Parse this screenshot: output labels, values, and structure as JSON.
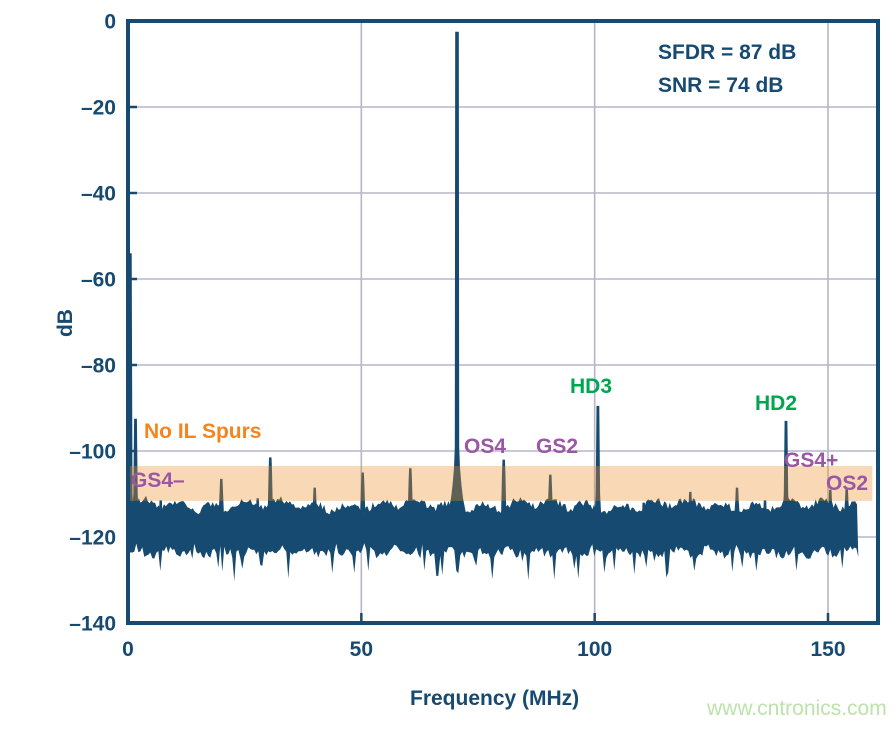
{
  "colors": {
    "navy": "#174A70",
    "grid": "#B6B6C8",
    "band_fill": "#EB8D26",
    "band_opacity": 0.34,
    "orange_text": "#F5841F",
    "purple_text": "#9A57A5",
    "green_text": "#00A550",
    "watermark_green": "#BCE3AB",
    "background": "#FFFFFF"
  },
  "chart_data": {
    "type": "line",
    "title": "",
    "xlabel": "Frequency (MHz)",
    "ylabel": "dB",
    "x_ticks": [
      0,
      50,
      100,
      150
    ],
    "y_ticks": [
      0,
      -20,
      -40,
      -60,
      -80,
      -100,
      -120,
      -140
    ],
    "xlim": [
      0,
      160.7
    ],
    "ylim": [
      -140,
      0
    ],
    "grid": true,
    "sfdr_db": 87,
    "snr_db": 74,
    "stats_box": {
      "line1": "SFDR = 87 dB",
      "line2": "SNR = 74 dB"
    },
    "fundamental": {
      "freq_mhz": 70.5,
      "level_db": -2.5
    },
    "noise_floor": {
      "top_db": -112.6,
      "bottom_db": -122.5,
      "start_mhz": 0,
      "end_mhz": 156.5
    },
    "highlight_band": {
      "top_db": -103.5,
      "bottom_db": -111.6,
      "start_mhz": 0,
      "end_mhz": 159.5
    },
    "spurs": [
      {
        "freq_mhz": 0.5,
        "level_db": -54
      },
      {
        "freq_mhz": 1.6,
        "level_db": -92.5,
        "label": "GS4–"
      },
      {
        "freq_mhz": 7.0,
        "level_db": -111.5
      },
      {
        "freq_mhz": 20.0,
        "level_db": -106.5
      },
      {
        "freq_mhz": 27.8,
        "level_db": -111
      },
      {
        "freq_mhz": 30.5,
        "level_db": -101.5
      },
      {
        "freq_mhz": 40.0,
        "level_db": -108.5
      },
      {
        "freq_mhz": 50.3,
        "level_db": -105
      },
      {
        "freq_mhz": 60.5,
        "level_db": -104
      },
      {
        "freq_mhz": 80.5,
        "level_db": -102,
        "label": "OS4"
      },
      {
        "freq_mhz": 90.5,
        "level_db": -105.5,
        "label": "GS2"
      },
      {
        "freq_mhz": 100.7,
        "level_db": -89.5,
        "label": "HD3"
      },
      {
        "freq_mhz": 110.5,
        "level_db": -112
      },
      {
        "freq_mhz": 120.5,
        "level_db": -109.5
      },
      {
        "freq_mhz": 130.5,
        "level_db": -108.5
      },
      {
        "freq_mhz": 136.5,
        "level_db": -111.5
      },
      {
        "freq_mhz": 141.0,
        "level_db": -93,
        "label": "HD2"
      },
      {
        "freq_mhz": 150.5,
        "level_db": -109,
        "label": "OS2"
      },
      {
        "freq_mhz": 154.0,
        "level_db": -108.5,
        "label": "GS4+"
      }
    ],
    "annotations": [
      {
        "id": "no-il-spurs",
        "text": "No IL Spurs",
        "color": "#F5841F"
      },
      {
        "id": "gs4-minus",
        "text": "GS4–",
        "color": "#9A57A5"
      },
      {
        "id": "os4",
        "text": "OS4",
        "color": "#9A57A5"
      },
      {
        "id": "gs2",
        "text": "GS2",
        "color": "#9A57A5"
      },
      {
        "id": "hd3",
        "text": "HD3",
        "color": "#00A550"
      },
      {
        "id": "hd2",
        "text": "HD2",
        "color": "#00A550"
      },
      {
        "id": "gs4-plus",
        "text": "GS4+",
        "color": "#9A57A5"
      },
      {
        "id": "os2",
        "text": "OS2",
        "color": "#9A57A5"
      }
    ],
    "watermark": "www.cntronics.com"
  }
}
